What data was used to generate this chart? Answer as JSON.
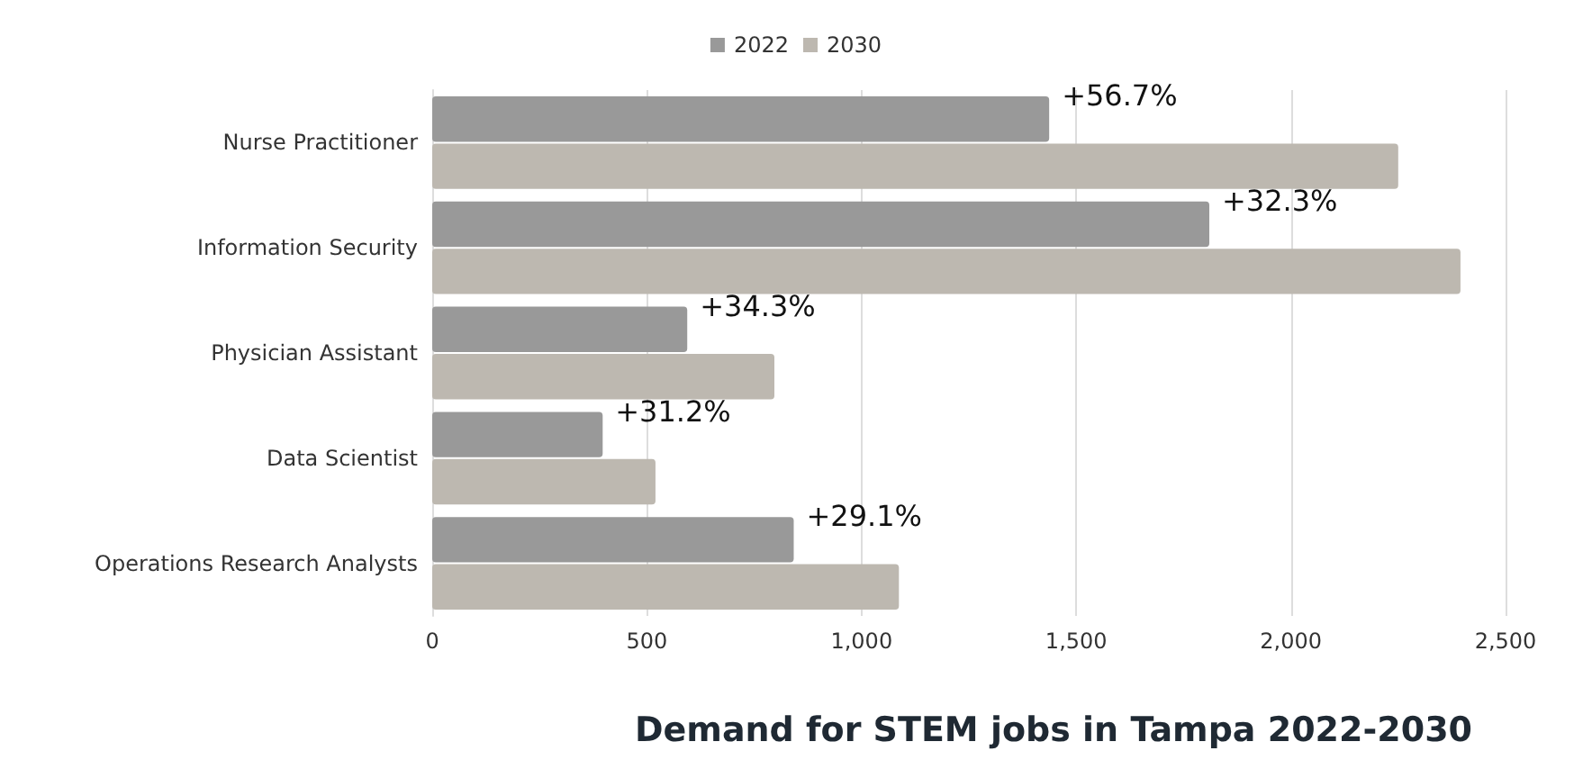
{
  "chart_data": {
    "type": "bar",
    "orientation": "horizontal",
    "title": "Demand for STEM jobs in Tampa 2022-2030",
    "categories": [
      "Nurse Practitioner",
      "Information Security",
      "Physician Assistant",
      "Data Scientist",
      "Operations Research Analysts"
    ],
    "series": [
      {
        "name": "2022",
        "color": "#999999",
        "values": [
          1437,
          1810,
          594,
          397,
          842
        ]
      },
      {
        "name": "2030",
        "color": "#bdb8b0",
        "values": [
          2250,
          2395,
          797,
          520,
          1087
        ]
      }
    ],
    "xlim": [
      0,
      2500
    ],
    "xticks": [
      0,
      {
        "value": 500,
        "label": "500"
      },
      {
        "value": 1000,
        "label": "1,000"
      },
      {
        "value": 1500,
        "label": "1,500"
      },
      {
        "value": 2000,
        "label": "2,000"
      },
      {
        "value": 2500,
        "label": "2,500"
      }
    ],
    "annotations": [
      {
        "text": "+56.7%",
        "x": 1437,
        "y": "Nurse Practitioner"
      },
      {
        "text": "+32.3%",
        "x": 1810,
        "y": "Information Security"
      },
      {
        "text": "+34.3%",
        "x": 594,
        "y": "Physician Assistant"
      },
      {
        "text": "+31.2%",
        "x": 397,
        "y": "Data Scientist"
      },
      {
        "text": "+29.1%",
        "x": 842,
        "y": "Operations Research Analysts"
      }
    ],
    "grid": "x",
    "legend": "top"
  }
}
